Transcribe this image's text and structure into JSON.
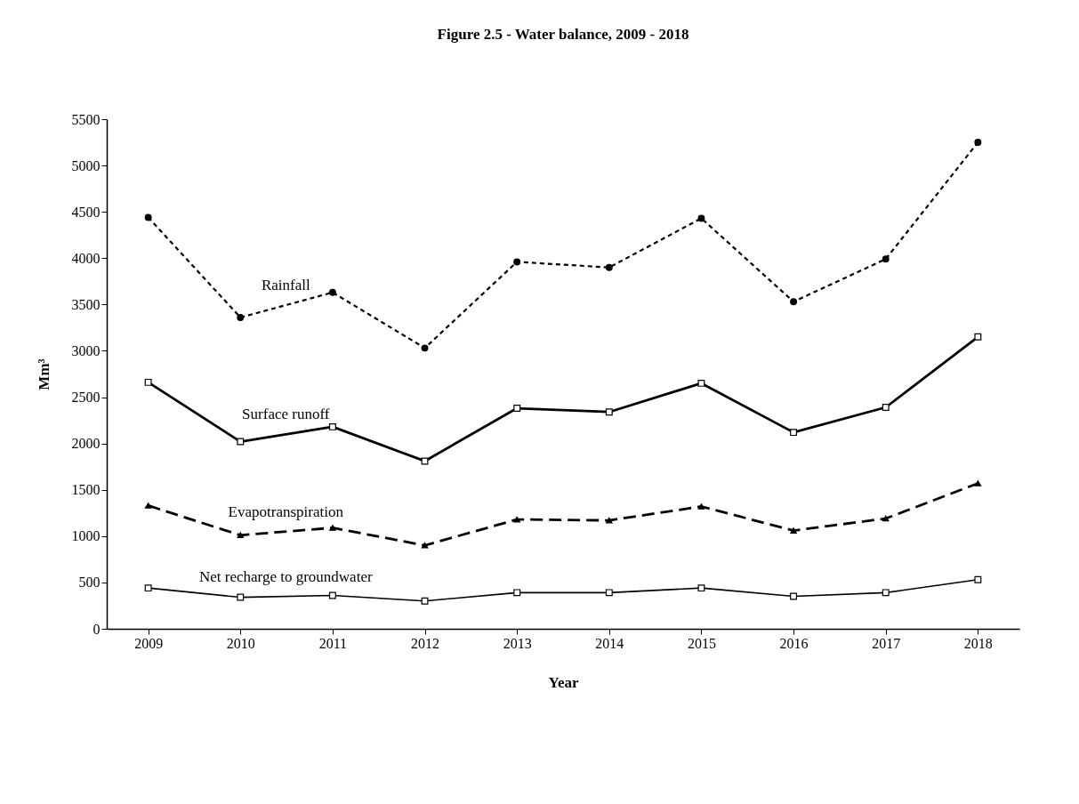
{
  "chart_data": {
    "type": "line",
    "title": "Figure 2.5 - Water balance, 2009 - 2018",
    "xlabel": "Year",
    "ylabel": "Mm³",
    "categories": [
      "2009",
      "2010",
      "2011",
      "2012",
      "2013",
      "2014",
      "2015",
      "2016",
      "2017",
      "2018"
    ],
    "series": [
      {
        "name": "Rainfall",
        "color": "#000000",
        "marker": "circle",
        "line_style": "dotted",
        "values": [
          4440,
          3360,
          3630,
          3030,
          3960,
          3900,
          4430,
          3530,
          3990,
          5250
        ]
      },
      {
        "name": "Surface runoff",
        "color": "#000000",
        "marker": "square",
        "line_style": "solid",
        "values": [
          2660,
          2020,
          2180,
          1810,
          2380,
          2340,
          2650,
          2120,
          2390,
          3150
        ]
      },
      {
        "name": "Evapotranspiration",
        "color": "#000000",
        "marker": "triangle",
        "line_style": "dashed",
        "values": [
          1330,
          1010,
          1090,
          900,
          1180,
          1170,
          1320,
          1060,
          1190,
          1570
        ]
      },
      {
        "name": "Net recharge to groundwater",
        "color": "#000000",
        "marker": "square",
        "line_style": "solid",
        "values": [
          440,
          340,
          360,
          300,
          390,
          390,
          440,
          350,
          390,
          530
        ]
      }
    ],
    "ylim": [
      0,
      5500
    ],
    "yticks": [
      0,
      500,
      1000,
      1500,
      2000,
      2500,
      3000,
      3500,
      4000,
      4500,
      5000,
      5500
    ],
    "grid": false,
    "legend": false
  }
}
